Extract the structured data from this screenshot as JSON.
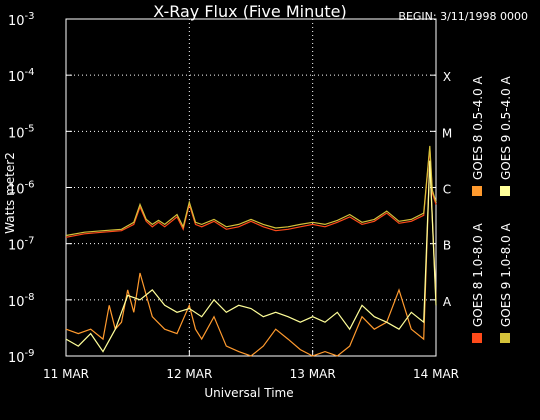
{
  "chart_data": {
    "type": "line",
    "title": "X-Ray Flux (Five Minute)",
    "begin_label": "BEGIN: 3/11/1998 0000",
    "xlabel": "Universal Time",
    "ylabel": "Watts meter2",
    "y_scale": "log",
    "ylim": [
      1e-09,
      0.001
    ],
    "y_ticks": [
      {
        "value": 1e-09,
        "base": "10",
        "exp": "-9"
      },
      {
        "value": 1e-08,
        "base": "10",
        "exp": "-8"
      },
      {
        "value": 1e-07,
        "base": "10",
        "exp": "-7"
      },
      {
        "value": 1e-06,
        "base": "10",
        "exp": "-6"
      },
      {
        "value": 1e-05,
        "base": "10",
        "exp": "-5"
      },
      {
        "value": 0.0001,
        "base": "10",
        "exp": "-4"
      },
      {
        "value": 0.001,
        "base": "10",
        "exp": "-3"
      }
    ],
    "x_ticks": [
      "11 MAR",
      "12 MAR",
      "13 MAR",
      "14 MAR"
    ],
    "xlim": [
      "1998-03-11T00:00",
      "1998-03-14T00:00"
    ],
    "grid": true,
    "flare_classes": [
      {
        "label": "A",
        "value": 1e-08
      },
      {
        "label": "B",
        "value": 1e-07
      },
      {
        "label": "C",
        "value": 1e-06
      },
      {
        "label": "M",
        "value": 1e-05
      },
      {
        "label": "X",
        "value": 0.0001
      }
    ],
    "legend_position": "right",
    "series": [
      {
        "name": "GOES 8 1.0-8.0 A",
        "color": "#ff4a1a",
        "x": [
          0,
          0.15,
          0.3,
          0.45,
          0.55,
          0.6,
          0.65,
          0.7,
          0.75,
          0.8,
          0.9,
          0.95,
          1.0,
          1.05,
          1.1,
          1.2,
          1.3,
          1.4,
          1.5,
          1.6,
          1.7,
          1.8,
          1.9,
          2.0,
          2.1,
          2.2,
          2.3,
          2.4,
          2.5,
          2.6,
          2.7,
          2.8,
          2.9,
          2.95,
          2.97,
          3.0
        ],
        "y": [
          1.3e-07,
          1.5e-07,
          1.6e-07,
          1.7e-07,
          2.2e-07,
          4.5e-07,
          2.5e-07,
          2e-07,
          2.4e-07,
          2e-07,
          3e-07,
          1.8e-07,
          5e-07,
          2.2e-07,
          2e-07,
          2.5e-07,
          1.8e-07,
          2e-07,
          2.5e-07,
          2e-07,
          1.7e-07,
          1.8e-07,
          2e-07,
          2.2e-07,
          2e-07,
          2.4e-07,
          3e-07,
          2.2e-07,
          2.5e-07,
          3.5e-07,
          2.3e-07,
          2.5e-07,
          3.2e-07,
          5e-06,
          8e-07,
          5e-07
        ]
      },
      {
        "name": "GOES 9 1.0-8.0 A",
        "color": "#d4c23a",
        "x": [
          0,
          0.15,
          0.3,
          0.45,
          0.55,
          0.6,
          0.65,
          0.7,
          0.75,
          0.8,
          0.9,
          0.95,
          1.0,
          1.05,
          1.1,
          1.2,
          1.3,
          1.4,
          1.5,
          1.6,
          1.7,
          1.8,
          1.9,
          2.0,
          2.1,
          2.2,
          2.3,
          2.4,
          2.5,
          2.6,
          2.7,
          2.8,
          2.9,
          2.95,
          2.97,
          3.0
        ],
        "y": [
          1.4e-07,
          1.6e-07,
          1.7e-07,
          1.8e-07,
          2.4e-07,
          5e-07,
          2.7e-07,
          2.2e-07,
          2.6e-07,
          2.2e-07,
          3.3e-07,
          2e-07,
          5.5e-07,
          2.4e-07,
          2.2e-07,
          2.7e-07,
          2e-07,
          2.2e-07,
          2.7e-07,
          2.2e-07,
          1.9e-07,
          2e-07,
          2.2e-07,
          2.4e-07,
          2.2e-07,
          2.6e-07,
          3.3e-07,
          2.4e-07,
          2.7e-07,
          3.8e-07,
          2.5e-07,
          2.7e-07,
          3.5e-07,
          5.5e-06,
          9e-07,
          5.5e-07
        ]
      },
      {
        "name": "GOES 8 0.5-4.0 A",
        "color": "#ff9a2e",
        "x": [
          0,
          0.1,
          0.2,
          0.3,
          0.35,
          0.4,
          0.45,
          0.5,
          0.55,
          0.6,
          0.7,
          0.8,
          0.9,
          1.0,
          1.05,
          1.1,
          1.2,
          1.3,
          1.4,
          1.5,
          1.6,
          1.7,
          1.8,
          1.9,
          2.0,
          2.1,
          2.2,
          2.3,
          2.4,
          2.5,
          2.6,
          2.7,
          2.8,
          2.9,
          2.95,
          3.0
        ],
        "y": [
          3e-09,
          2.5e-09,
          3e-09,
          2e-09,
          8e-09,
          3e-09,
          4e-09,
          1.5e-08,
          6e-09,
          3e-08,
          5e-09,
          3e-09,
          2.5e-09,
          8e-09,
          3e-09,
          2e-09,
          5e-09,
          1.5e-09,
          1.2e-09,
          1e-09,
          1.5e-09,
          3e-09,
          2e-09,
          1.3e-09,
          1e-09,
          1.2e-09,
          1e-09,
          1.5e-09,
          5e-09,
          3e-09,
          4e-09,
          1.5e-08,
          3e-09,
          2e-09,
          3e-06,
          1e-08
        ]
      },
      {
        "name": "GOES 9 0.5-4.0 A",
        "color": "#ffff99",
        "x": [
          0,
          0.1,
          0.2,
          0.3,
          0.4,
          0.5,
          0.6,
          0.7,
          0.8,
          0.9,
          1.0,
          1.1,
          1.2,
          1.3,
          1.4,
          1.5,
          1.6,
          1.7,
          1.8,
          1.9,
          2.0,
          2.1,
          2.2,
          2.3,
          2.4,
          2.5,
          2.6,
          2.7,
          2.8,
          2.9,
          2.95,
          3.0
        ],
        "y": [
          2e-09,
          1.5e-09,
          2.5e-09,
          1.2e-09,
          3e-09,
          1.2e-08,
          1e-08,
          1.5e-08,
          8e-09,
          6e-09,
          7e-09,
          5e-09,
          1e-08,
          6e-09,
          8e-09,
          7e-09,
          5e-09,
          6e-09,
          5e-09,
          4e-09,
          5e-09,
          4e-09,
          6e-09,
          3e-09,
          8e-09,
          5e-09,
          4e-09,
          3e-09,
          6e-09,
          4e-09,
          3e-06,
          8e-09
        ]
      }
    ]
  }
}
